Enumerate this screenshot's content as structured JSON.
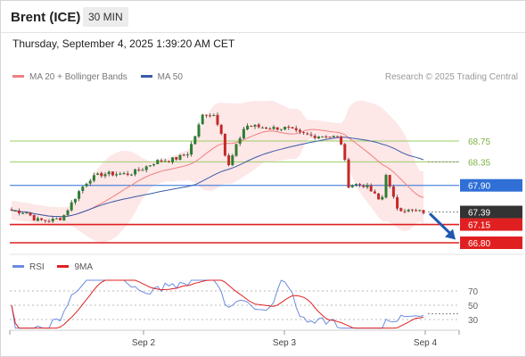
{
  "header": {
    "instrument": "Brent (ICE)",
    "timeframe": "30 MIN",
    "datetime": "Thursday, September 4, 2025 1:39:20 AM CET"
  },
  "legend": {
    "ma20_label": "MA 20 + Bollinger Bands",
    "ma50_label": "MA 50",
    "credit": "Research © 2025 Trading Central"
  },
  "price_levels": [
    {
      "value": "68.75",
      "role": "resistance",
      "color": "#9ccc65"
    },
    {
      "value": "68.35",
      "role": "resistance",
      "color": "#9ccc65"
    },
    {
      "value": "67.90",
      "role": "pivot",
      "color": "#2f6fd6"
    },
    {
      "value": "67.39",
      "role": "last",
      "color": "#333333"
    },
    {
      "value": "67.15",
      "role": "support",
      "color": "#e02020"
    },
    {
      "value": "66.80",
      "role": "support",
      "color": "#e02020"
    }
  ],
  "rsi_panel": {
    "rsi_label": "RSI",
    "ma_label": "9MA",
    "levels": [
      "70",
      "50",
      "30"
    ]
  },
  "x_axis": {
    "labels": [
      "Sep 2",
      "Sep 3",
      "Sep 4"
    ]
  },
  "colors": {
    "up": "#2e7d32",
    "down": "#c62828",
    "band_fill": "#fde3e3",
    "ma20": "#f08080",
    "ma50": "#3b5ba8",
    "rsi": "#6b8ce0",
    "rsi_ma": "#e02020",
    "forecast_arrow": "#2058b0"
  },
  "chart_data": {
    "type": "candlestick",
    "title": "Brent (ICE)",
    "timeframe": "30 MIN",
    "x": [
      "Sep 2",
      "Sep 3",
      "Sep 4"
    ],
    "ylim": [
      66.6,
      69.3
    ],
    "series": [
      {
        "name": "MA 20 + Bollinger Bands"
      },
      {
        "name": "MA 50"
      }
    ],
    "horizontal_levels": [
      68.75,
      68.35,
      67.9,
      67.39,
      67.15,
      66.8
    ],
    "last_price": 67.39,
    "rsi": {
      "name": "RSI",
      "ma_name": "9MA",
      "levels": [
        70,
        50,
        30
      ],
      "ylim": [
        0,
        100
      ]
    },
    "annotations": [
      "bearish forecast arrow toward 66.80"
    ]
  }
}
